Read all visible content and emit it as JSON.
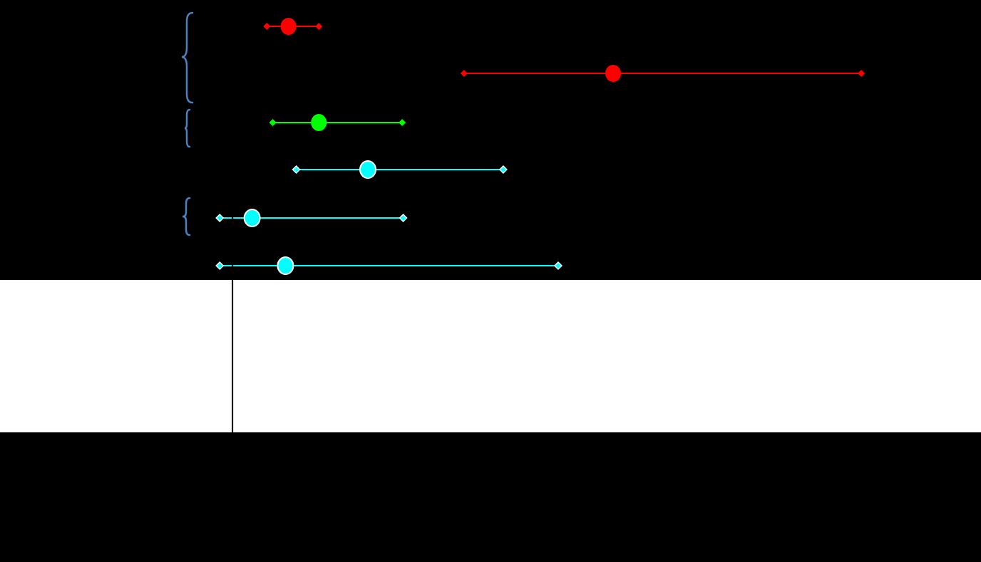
{
  "chart_data": {
    "type": "forest",
    "xlim": [
      0,
      100
    ],
    "reference": 23.7,
    "rows": [
      {
        "color": "#ff0000",
        "lower": 27.2,
        "estimate": 29.4,
        "upper": 32.5
      },
      {
        "color": "#ff0000",
        "lower": 47.3,
        "estimate": 62.5,
        "upper": 87.8
      },
      {
        "color": "#00ff00",
        "lower": 27.8,
        "estimate": 32.5,
        "upper": 41.0
      },
      {
        "color": "#00ffff",
        "lower": 30.2,
        "estimate": 37.5,
        "upper": 51.3
      },
      {
        "color": "#00ffff",
        "lower": 22.4,
        "estimate": 25.7,
        "upper": 41.1
      },
      {
        "color": "#00ffff",
        "lower": 22.4,
        "estimate": 29.1,
        "upper": 56.9
      }
    ]
  }
}
